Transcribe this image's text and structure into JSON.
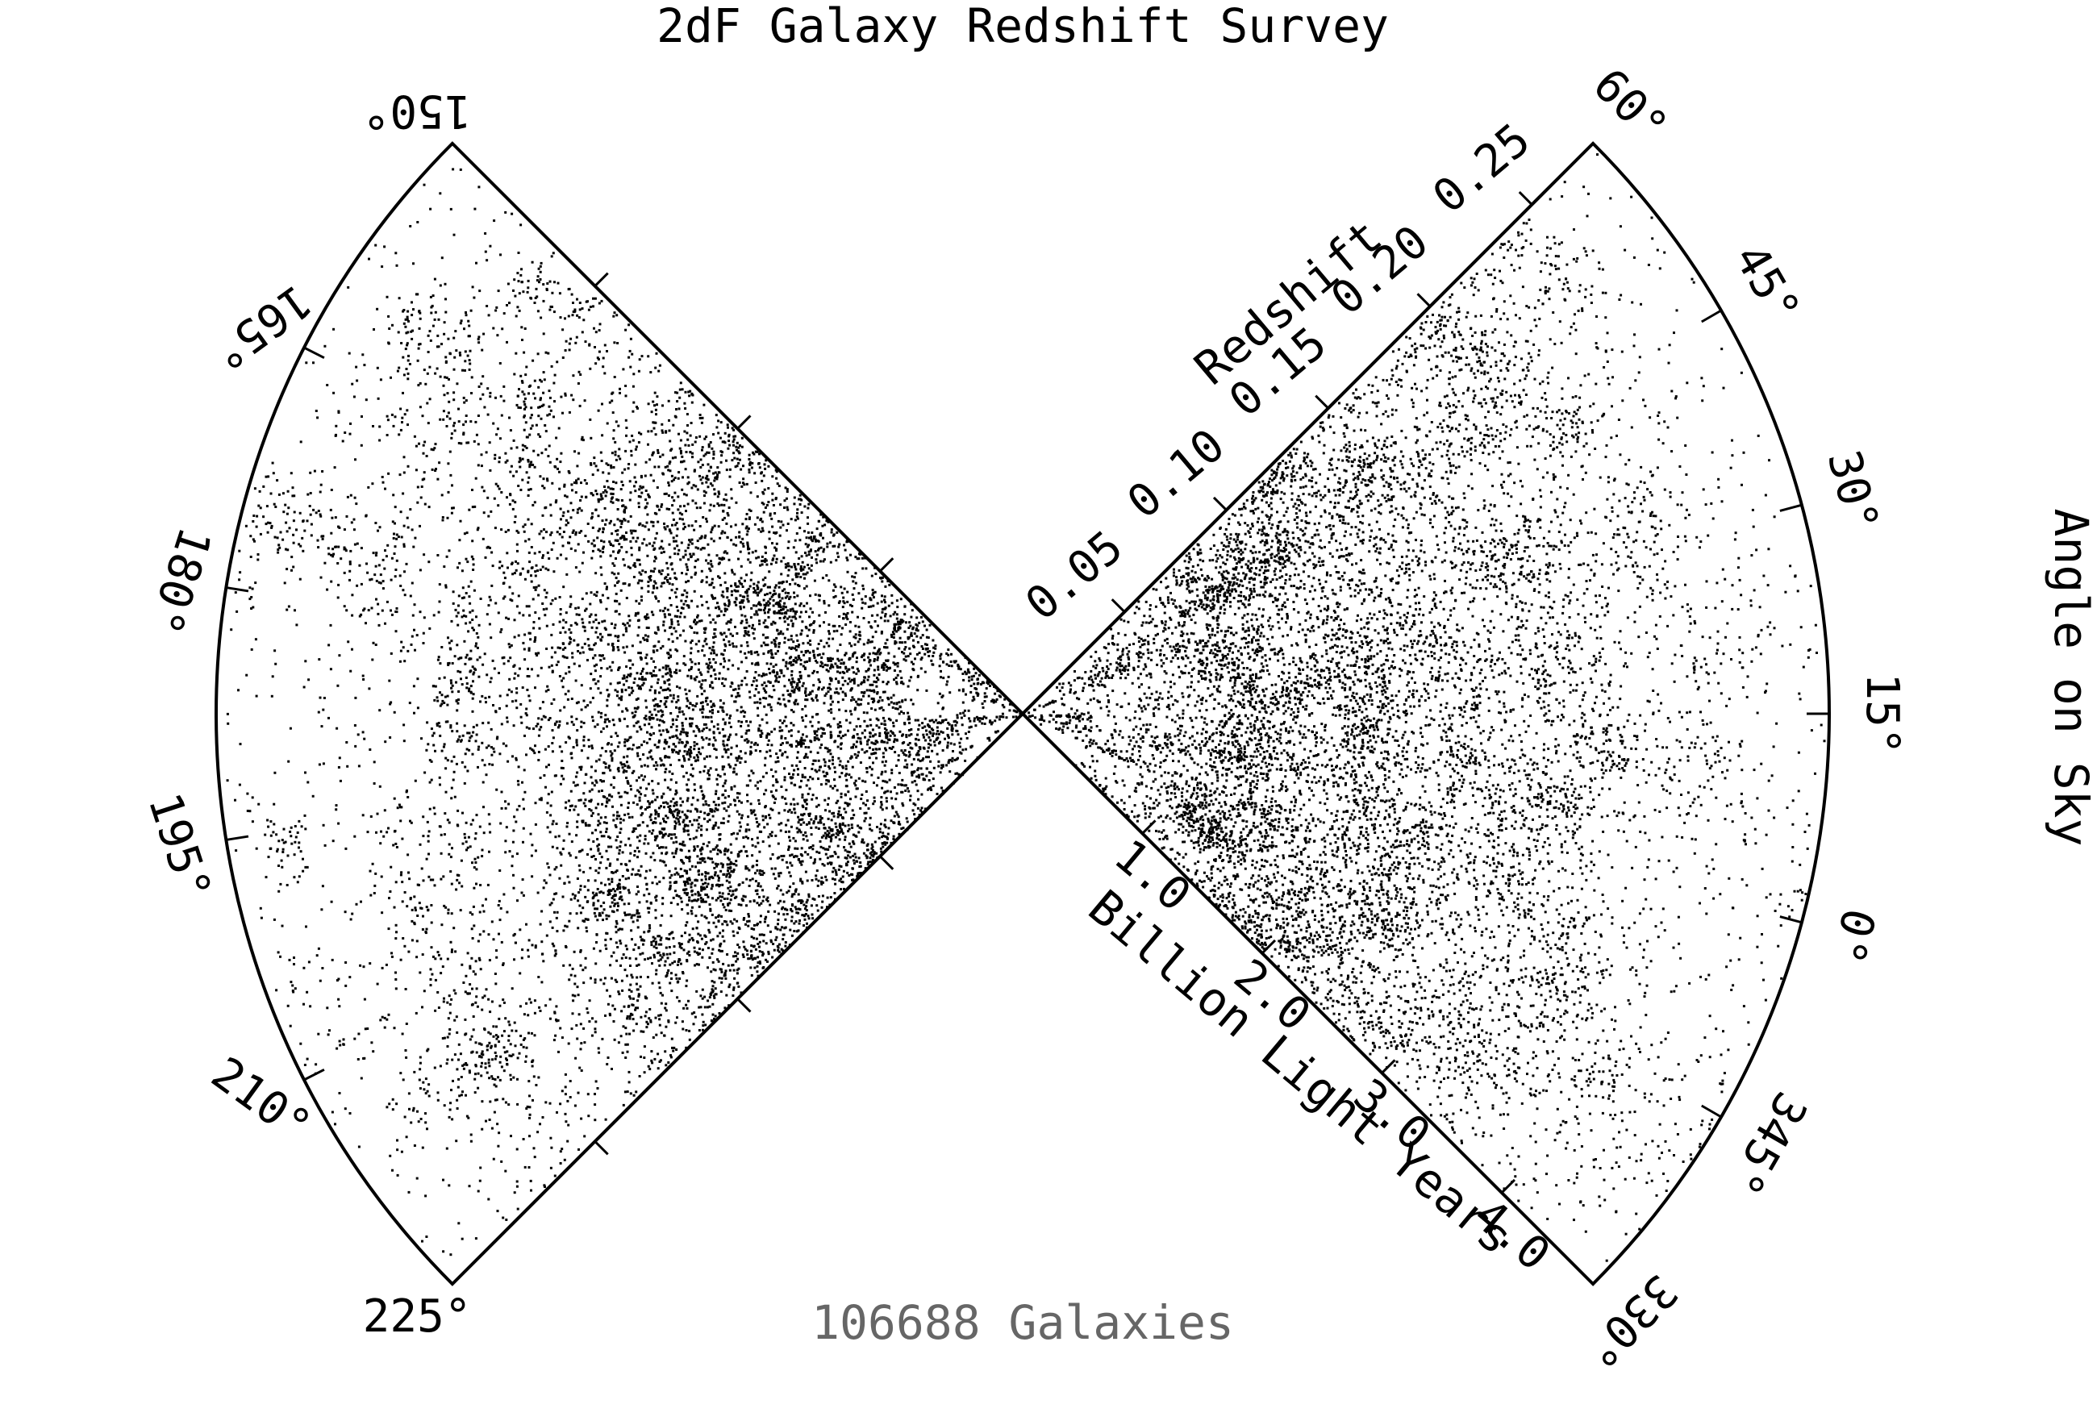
{
  "chart_data": {
    "type": "scatter",
    "title": "2dF Galaxy Redshift Survey",
    "galaxy_count_label": "106688 Galaxies",
    "angle_axis_label": "Angle on Sky",
    "redshift_axis_label": "Redshift",
    "distance_axis_label": "Billion Light Years",
    "redshift_ticks": [
      "0.05",
      "0.10",
      "0.15",
      "0.20",
      "0.25"
    ],
    "redshift_tick_values": [
      0.05,
      0.1,
      0.15,
      0.2,
      0.25
    ],
    "distance_ticks": [
      "1.0",
      "2.0",
      "3.0",
      "4.0"
    ],
    "distance_tick_values": [
      1.0,
      2.0,
      3.0,
      4.0
    ],
    "redshift_range": [
      0,
      0.28
    ],
    "north_wedge": {
      "ra_range_deg": [
        150,
        225
      ],
      "angle_ticks": [
        "150°",
        "165°",
        "180°",
        "195°",
        "210°",
        "225°"
      ],
      "angle_tick_values_deg": [
        150,
        165,
        180,
        195,
        210,
        225
      ]
    },
    "south_wedge": {
      "ra_range_deg": [
        -30,
        60
      ],
      "angle_ticks": [
        "60°",
        "45°",
        "30°",
        "15°",
        "0°",
        "345°",
        "330°"
      ],
      "angle_tick_values_deg": [
        60,
        45,
        30,
        15,
        0,
        -15,
        -30
      ]
    },
    "point_color": "#000000",
    "background_color": "#ffffff",
    "count_label_color": "#666666",
    "grid": false
  }
}
